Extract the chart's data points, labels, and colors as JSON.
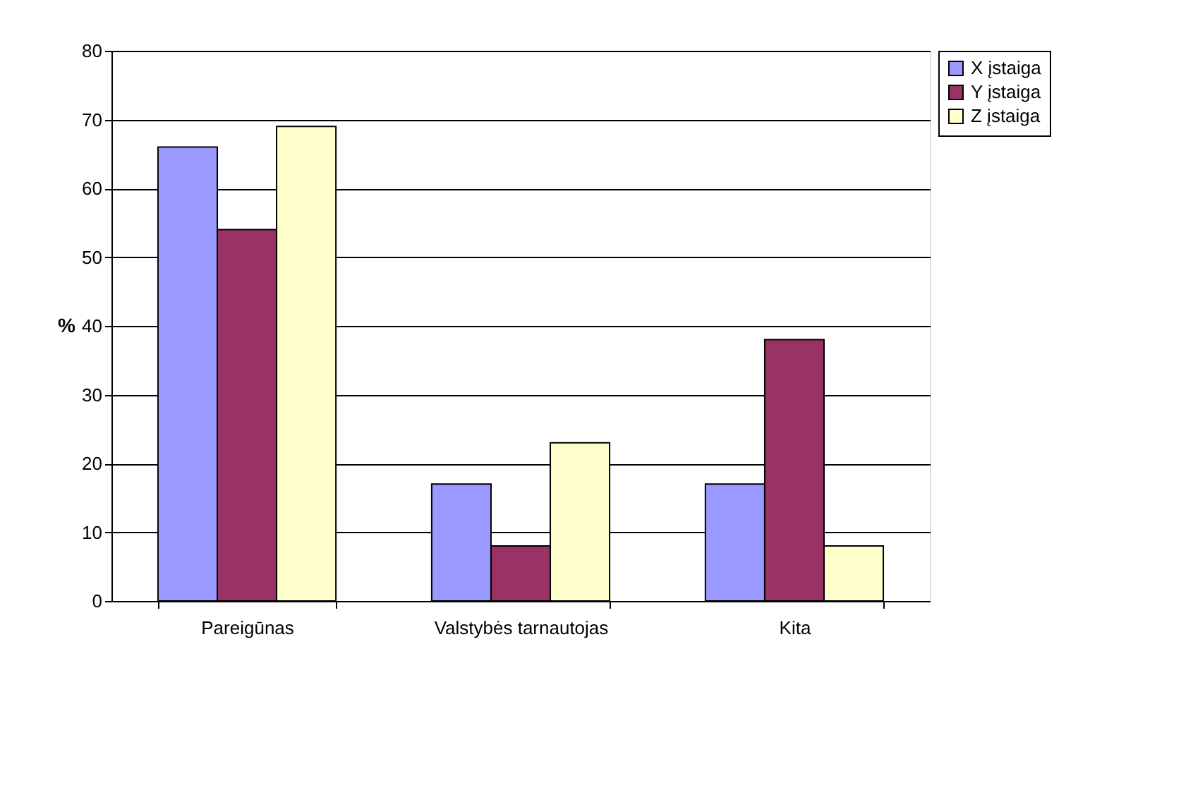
{
  "chart_data": {
    "type": "bar",
    "ylabel": "%",
    "categories": [
      "Pareigūnas",
      "Valstybės tarnautojas",
      "Kita"
    ],
    "series": [
      {
        "name": "X įstaiga",
        "color": "#9999ff",
        "values": [
          66,
          17,
          17
        ]
      },
      {
        "name": "Y įstaiga",
        "color": "#993366",
        "values": [
          54,
          8,
          38
        ]
      },
      {
        "name": "Z įstaiga",
        "color": "#ffffcc",
        "values": [
          69,
          23,
          8
        ]
      }
    ],
    "ylim": [
      0,
      80
    ],
    "yticks": [
      0,
      10,
      20,
      30,
      40,
      50,
      60,
      70,
      80
    ],
    "grid": "y",
    "legend": "right"
  }
}
